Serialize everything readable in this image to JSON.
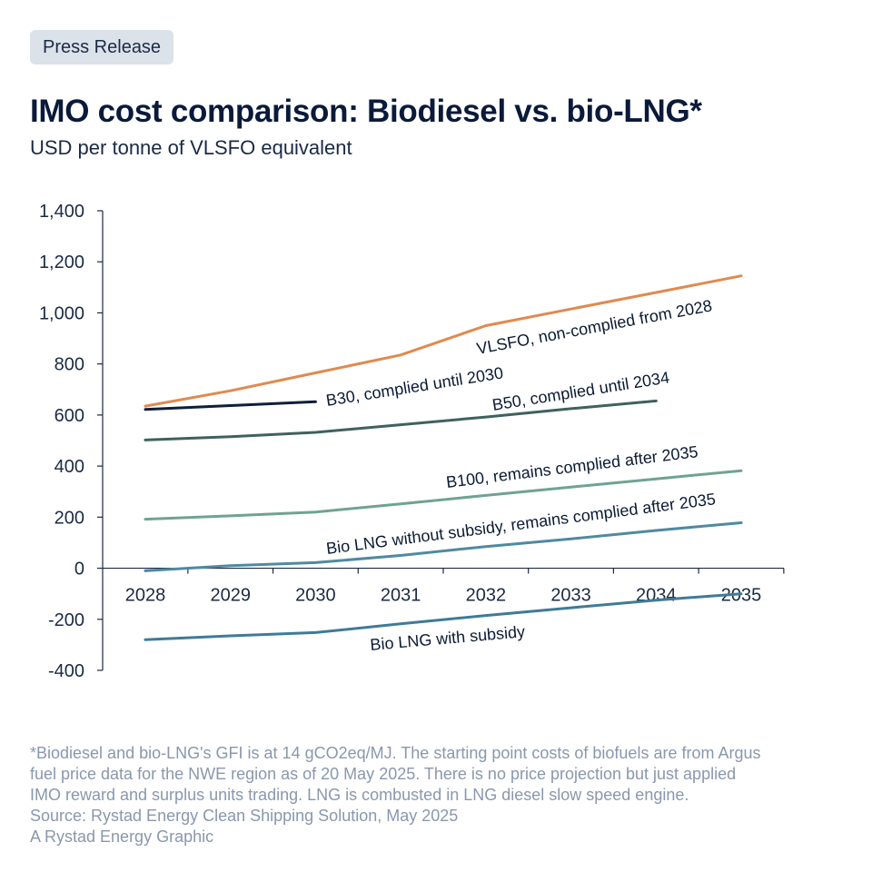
{
  "header": {
    "badge": "Press Release",
    "title": "IMO cost comparison: Biodiesel vs. bio-LNG*",
    "subtitle": "USD per tonne of VLSFO equivalent"
  },
  "colors": {
    "vlsfo": "#e08a4f",
    "b30": "#0e1f3a",
    "b50": "#40615e",
    "b100": "#6fa392",
    "bio_lng_no_subsidy": "#4f8aa0",
    "bio_lng_subsidy": "#3f7b97",
    "axis": "#1b2a44"
  },
  "chart_data": {
    "type": "line",
    "x": [
      "2028",
      "2029",
      "2030",
      "2031",
      "2032",
      "2033",
      "2034",
      "2035"
    ],
    "ylim": [
      -400,
      1400
    ],
    "yticks": [
      -400,
      -200,
      0,
      200,
      400,
      600,
      800,
      1000,
      1200,
      1400
    ],
    "ytick_labels": [
      "-400",
      "-200",
      "0",
      "200",
      "400",
      "600",
      "800",
      "1,000",
      "1,200",
      "1,400"
    ],
    "grid": false,
    "series": [
      {
        "name": "VLSFO, non-complied from 2028",
        "color_key": "vlsfo",
        "points": [
          [
            2028,
            635
          ],
          [
            2029,
            695
          ],
          [
            2030,
            765
          ],
          [
            2031,
            835
          ],
          [
            2032,
            950
          ],
          [
            2033,
            1015
          ],
          [
            2034,
            1080
          ],
          [
            2035,
            1145
          ]
        ]
      },
      {
        "name": "B30, complied until 2030",
        "color_key": "b30",
        "points": [
          [
            2028,
            622
          ],
          [
            2029,
            637
          ],
          [
            2030,
            652
          ]
        ]
      },
      {
        "name": "B50, complied until 2034",
        "color_key": "b50",
        "points": [
          [
            2028,
            502
          ],
          [
            2029,
            515
          ],
          [
            2030,
            532
          ],
          [
            2031,
            562
          ],
          [
            2032,
            592
          ],
          [
            2033,
            625
          ],
          [
            2034,
            655
          ]
        ]
      },
      {
        "name": "B100, remains complied after 2035",
        "color_key": "b100",
        "points": [
          [
            2028,
            192
          ],
          [
            2029,
            205
          ],
          [
            2030,
            220
          ],
          [
            2031,
            252
          ],
          [
            2032,
            285
          ],
          [
            2033,
            318
          ],
          [
            2034,
            350
          ],
          [
            2035,
            382
          ]
        ]
      },
      {
        "name": "Bio LNG without subsidy, remains complied after 2035",
        "color_key": "bio_lng_no_subsidy",
        "points": [
          [
            2028,
            -10
          ],
          [
            2029,
            10
          ],
          [
            2030,
            22
          ],
          [
            2031,
            50
          ],
          [
            2032,
            85
          ],
          [
            2033,
            115
          ],
          [
            2034,
            148
          ],
          [
            2035,
            178
          ]
        ]
      },
      {
        "name": "Bio LNG with subsidy",
        "color_key": "bio_lng_subsidy",
        "points": [
          [
            2028,
            -280
          ],
          [
            2029,
            -265
          ],
          [
            2030,
            -252
          ],
          [
            2031,
            -218
          ],
          [
            2032,
            -185
          ],
          [
            2033,
            -155
          ],
          [
            2034,
            -125
          ],
          [
            2035,
            -100
          ]
        ]
      }
    ]
  },
  "footnote": {
    "lines": [
      "*Biodiesel and bio-LNG's GFI is at 14 gCO2eq/MJ. The starting point costs of biofuels are from Argus",
      "fuel price data for the NWE region as of 20 May 2025. There is no price projection but just applied",
      "IMO reward and surplus units trading. LNG is combusted in LNG diesel slow speed engine.",
      "Source: Rystad Energy Clean Shipping Solution, May 2025",
      "A Rystad Energy Graphic"
    ]
  }
}
